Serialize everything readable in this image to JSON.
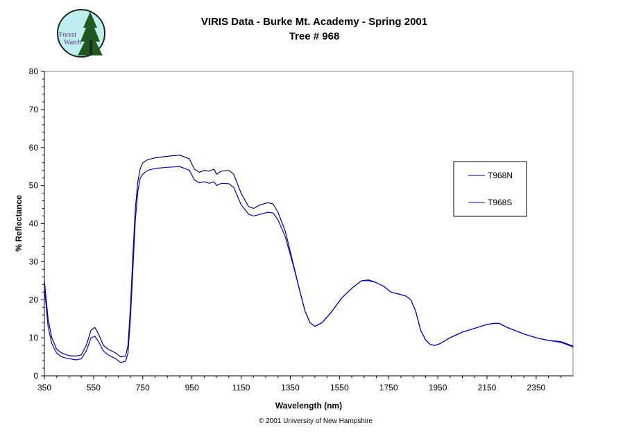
{
  "logo": {
    "line1": "Forest",
    "line2": "Watch"
  },
  "copyright": "© 2001 University of New Hampshire",
  "chart_data": {
    "type": "line",
    "title": "VIRIS Data - Burke Mt. Academy - Spring 2001",
    "subtitle": "Tree # 968",
    "xlabel": "Wavelength (nm)",
    "ylabel": "% Reflectance",
    "xlim": [
      350,
      2500
    ],
    "ylim": [
      0,
      80
    ],
    "xticks": [
      350,
      550,
      750,
      950,
      1150,
      1350,
      1550,
      1750,
      1950,
      2150,
      2350
    ],
    "yticks": [
      0,
      10,
      20,
      30,
      40,
      50,
      60,
      70,
      80
    ],
    "grid": false,
    "legend_position": "right",
    "colors": {
      "T968N": "#000080",
      "T968S": "#0000dd"
    },
    "series": [
      {
        "name": "T968N",
        "x": [
          350,
          365,
          380,
          400,
          420,
          450,
          480,
          500,
          520,
          540,
          555,
          570,
          590,
          610,
          640,
          660,
          680,
          690,
          700,
          710,
          720,
          730,
          740,
          750,
          770,
          800,
          850,
          900,
          940,
          960,
          980,
          1000,
          1020,
          1040,
          1050,
          1070,
          1100,
          1120,
          1150,
          1180,
          1200,
          1230,
          1260,
          1280,
          1300,
          1330,
          1360,
          1390,
          1410,
          1430,
          1450,
          1480,
          1520,
          1560,
          1600,
          1640,
          1670,
          1700,
          1730,
          1760,
          1790,
          1820,
          1840,
          1860,
          1880,
          1900,
          1920,
          1940,
          1960,
          2000,
          2050,
          2100,
          2150,
          2180,
          2200,
          2230,
          2260,
          2300,
          2350,
          2400,
          2450,
          2480,
          2500
        ],
        "values": [
          25,
          15,
          10,
          7,
          6,
          5.3,
          5.2,
          5.5,
          8,
          12,
          12.7,
          11,
          8,
          7,
          6,
          5,
          5.2,
          8,
          18,
          32,
          44,
          51,
          54.5,
          56,
          56.8,
          57.3,
          57.7,
          58,
          57,
          54.3,
          53.5,
          54,
          53.8,
          54.3,
          53,
          53.8,
          54,
          53,
          48,
          44.5,
          44,
          45,
          45.5,
          45.2,
          43,
          38,
          30,
          22,
          17,
          14,
          13,
          14,
          17,
          20.5,
          23,
          25,
          25.2,
          24.5,
          23.5,
          22,
          21.5,
          21,
          20,
          17,
          12,
          9.5,
          8.2,
          8,
          8.5,
          10,
          11.5,
          12.5,
          13.5,
          13.8,
          13.8,
          12.8,
          12,
          11,
          10,
          9.3,
          9,
          8.3,
          7.8
        ]
      },
      {
        "name": "T968S",
        "x": [
          350,
          365,
          380,
          400,
          420,
          450,
          480,
          500,
          520,
          540,
          555,
          570,
          590,
          610,
          640,
          660,
          680,
          690,
          700,
          710,
          720,
          730,
          740,
          750,
          770,
          800,
          850,
          900,
          940,
          960,
          980,
          1000,
          1020,
          1040,
          1050,
          1070,
          1100,
          1120,
          1150,
          1180,
          1200,
          1230,
          1260,
          1280,
          1300,
          1330,
          1360,
          1390,
          1410,
          1430,
          1450,
          1480,
          1520,
          1560,
          1600,
          1640,
          1670,
          1700,
          1730,
          1760,
          1790,
          1820,
          1840,
          1860,
          1880,
          1900,
          1920,
          1940,
          1960,
          2000,
          2050,
          2100,
          2150,
          2180,
          2200,
          2230,
          2260,
          2300,
          2350,
          2400,
          2450,
          2480,
          2500
        ],
        "values": [
          23,
          13,
          8.5,
          6,
          5,
          4.5,
          4.2,
          4.5,
          6.5,
          10,
          10.4,
          9,
          6.5,
          5.5,
          4.5,
          3.5,
          3.8,
          6,
          15,
          28,
          41,
          48.5,
          52,
          53,
          54,
          54.5,
          54.8,
          55,
          54,
          51.5,
          50.7,
          51,
          50.6,
          51,
          50,
          50.6,
          50.5,
          49.5,
          45,
          42.5,
          42,
          42.5,
          43,
          42.8,
          41,
          36.5,
          29.5,
          22,
          17,
          14,
          13,
          14,
          17,
          20.5,
          23,
          25,
          25,
          24.5,
          23.5,
          22,
          21.5,
          21,
          20,
          17,
          12,
          9.5,
          8.2,
          8,
          8.5,
          10,
          11.5,
          12.5,
          13.5,
          13.8,
          13.8,
          12.8,
          12,
          11,
          10,
          9.3,
          8.8,
          8.1,
          7.6
        ]
      }
    ]
  }
}
